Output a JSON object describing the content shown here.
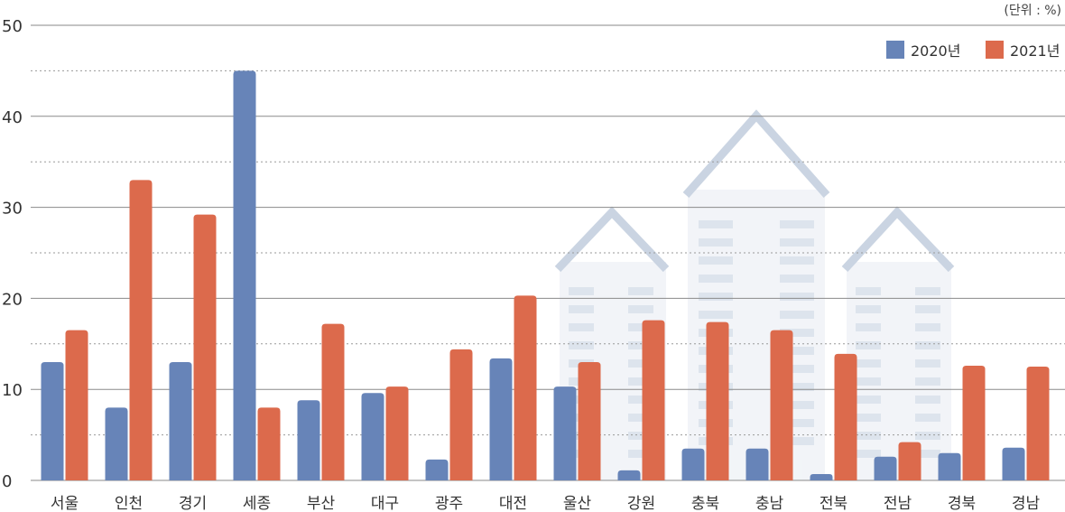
{
  "chart_data": {
    "type": "bar",
    "unit": "(단위 : %)",
    "categories": [
      "서울",
      "인천",
      "경기",
      "세종",
      "부산",
      "대구",
      "광주",
      "대전",
      "울산",
      "강원",
      "충북",
      "충남",
      "전북",
      "전남",
      "경북",
      "경남"
    ],
    "series": [
      {
        "name": "2020년",
        "color": "#6784b8",
        "values": [
          13.0,
          8.0,
          13.0,
          45.0,
          8.8,
          9.6,
          2.3,
          13.4,
          10.3,
          1.1,
          3.5,
          3.5,
          0.7,
          2.6,
          3.0,
          3.6
        ]
      },
      {
        "name": "2021년",
        "color": "#dc6a4c",
        "values": [
          16.5,
          33.0,
          29.2,
          8.0,
          17.2,
          10.3,
          14.4,
          20.3,
          13.0,
          17.6,
          17.4,
          16.5,
          13.9,
          4.2,
          12.6,
          12.5
        ]
      }
    ],
    "yticks": [
      "0",
      "10",
      "20",
      "30",
      "40",
      "50"
    ],
    "ylim": [
      0,
      50
    ],
    "grid": true,
    "legend": "top-right"
  }
}
